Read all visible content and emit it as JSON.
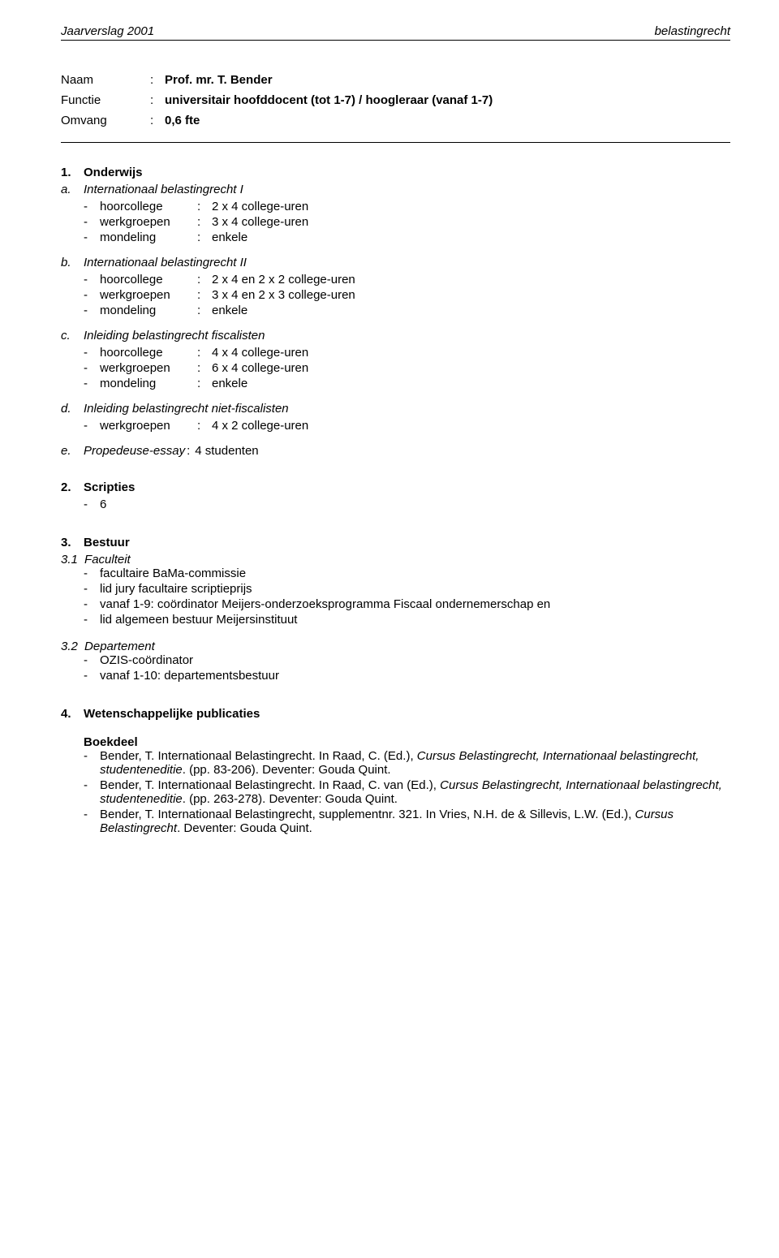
{
  "header": {
    "left": "Jaarverslag 2001",
    "right": "belastingrecht"
  },
  "identity": {
    "name_label": "Naam",
    "name_value": "Prof. mr. T. Bender",
    "function_label": "Functie",
    "function_value": "universitair hoofddocent (tot 1-7) / hoogleraar (vanaf 1-7)",
    "extent_label": "Omvang",
    "extent_value": "0,6 fte"
  },
  "s1": {
    "num": "1.",
    "title": "Onderwijs",
    "a": {
      "letter": "a.",
      "title": "Internationaal belastingrecht I",
      "rows": [
        {
          "k": "hoorcollege",
          "v": "2 x 4 college-uren"
        },
        {
          "k": "werkgroepen",
          "v": "3 x 4 college-uren"
        },
        {
          "k": "mondeling",
          "v": "enkele"
        }
      ]
    },
    "b": {
      "letter": "b.",
      "title": "Internationaal belastingrecht II",
      "rows": [
        {
          "k": "hoorcollege",
          "v": "2 x 4 en 2 x 2 college-uren"
        },
        {
          "k": "werkgroepen",
          "v": "3 x 4 en 2 x 3 college-uren"
        },
        {
          "k": "mondeling",
          "v": "enkele"
        }
      ]
    },
    "c": {
      "letter": "c.",
      "title": "Inleiding belastingrecht fiscalisten",
      "rows": [
        {
          "k": "hoorcollege",
          "v": "4 x 4 college-uren"
        },
        {
          "k": "werkgroepen",
          "v": "6 x 4 college-uren"
        },
        {
          "k": "mondeling",
          "v": "enkele"
        }
      ]
    },
    "d": {
      "letter": "d.",
      "title": "Inleiding belastingrecht niet-fiscalisten",
      "rows": [
        {
          "k": "werkgroepen",
          "v": "4 x 2 college-uren"
        }
      ]
    },
    "e": {
      "letter": "e.",
      "title": "Propedeuse-essay",
      "value": "4 studenten"
    }
  },
  "s2": {
    "num": "2.",
    "title": "Scripties",
    "items": [
      "6"
    ]
  },
  "s3": {
    "num": "3.",
    "title": "Bestuur",
    "sub1": {
      "num": "3.1",
      "title": "Faculteit",
      "items": [
        "facultaire BaMa-commissie",
        "lid jury facultaire scriptieprijs",
        "vanaf 1-9: coördinator Meijers-onderzoeksprogramma Fiscaal ondernemerschap en",
        "lid algemeen bestuur Meijersinstituut"
      ]
    },
    "sub2": {
      "num": "3.2",
      "title": "Departement",
      "items": [
        "OZIS-coördinator",
        "vanaf 1-10: departementsbestuur"
      ]
    }
  },
  "s4": {
    "num": "4.",
    "title": "Wetenschappelijke publicaties",
    "book_heading": "Boekdeel",
    "pubs": [
      {
        "pre": "Bender, T. Internationaal Belastingrecht. In Raad, C. (Ed.), ",
        "ital": "Cursus Belastingrecht, Internationaal belastingrecht, studenteneditie",
        "post": ". (pp. 83-206). Deventer: Gouda Quint."
      },
      {
        "pre": "Bender, T. Internationaal Belastingrecht. In Raad, C. van (Ed.), ",
        "ital": "Cursus Belastingrecht, Internationaal belastingrecht, studenteneditie",
        "post": ". (pp. 263-278). Deventer: Gouda Quint."
      },
      {
        "pre": "Bender, T. Internationaal Belastingrecht, supplementnr. 321. In Vries, N.H. de & Sillevis, L.W. (Ed.), ",
        "ital": "Cursus Belastingrecht",
        "post": ". Deventer: Gouda Quint."
      }
    ]
  }
}
